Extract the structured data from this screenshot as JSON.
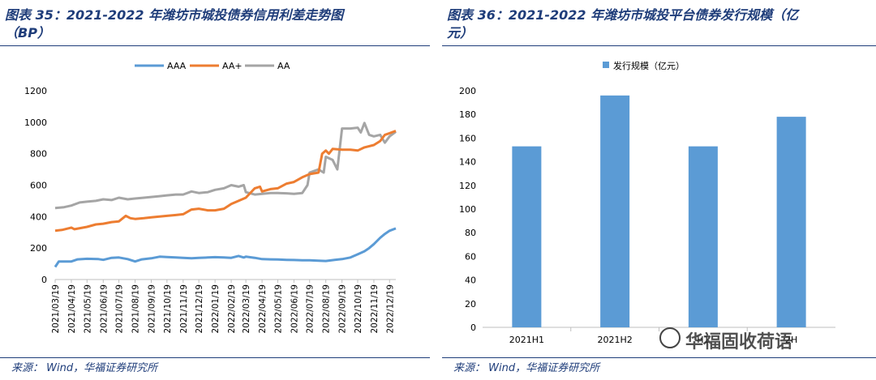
{
  "left": {
    "title_line1": "图表 35：2021-2022 年潍坊市城投债券信用利差走势图",
    "title_line2": "（BP）",
    "source": "来源： Wind，华福证券研究所"
  },
  "right": {
    "title_line1": "图表 36：2021-2022 年潍坊市城投平台债券发行规模（亿",
    "title_line2": "元）",
    "source": "来源： Wind，华福证券研究所"
  },
  "watermark": "华福固收荷语",
  "colors": {
    "AAA": "#5b9bd5",
    "AA+": "#ed7d31",
    "AA": "#a5a5a5",
    "bar": "#5b9bd5",
    "title": "#1f3d7a"
  },
  "chart_data": [
    {
      "type": "line",
      "ylim": [
        0,
        1200
      ],
      "yticks": [
        "0",
        "200",
        "400",
        "600",
        "800",
        "1000",
        "1200"
      ],
      "x_tick_labels": [
        "2021/03/19",
        "2021/04/19",
        "2021/05/19",
        "2021/06/19",
        "2021/07/19",
        "2021/08/19",
        "2021/09/19",
        "2021/10/19",
        "2021/11/19",
        "2021/12/19",
        "2022/01/19",
        "2022/02/19",
        "2022/03/19",
        "2022/04/19",
        "2022/05/19",
        "2022/06/19",
        "2022/07/19",
        "2022/08/19",
        "2022/09/19",
        "2022/10/19",
        "2022/11/19",
        "2022/12/19"
      ],
      "x_range": [
        "2021/03/19",
        "2022/12/31"
      ],
      "legend_position": "top-center",
      "series": [
        {
          "name": "AAA",
          "points": [
            [
              "2021/03/19",
              80
            ],
            [
              "2021/03/26",
              115
            ],
            [
              "2021/04/19",
              115
            ],
            [
              "2021/05/01",
              128
            ],
            [
              "2021/05/19",
              132
            ],
            [
              "2021/06/10",
              130
            ],
            [
              "2021/06/19",
              125
            ],
            [
              "2021/07/05",
              138
            ],
            [
              "2021/07/19",
              140
            ],
            [
              "2021/08/05",
              130
            ],
            [
              "2021/08/19",
              115
            ],
            [
              "2021/09/01",
              128
            ],
            [
              "2021/09/19",
              135
            ],
            [
              "2021/10/05",
              145
            ],
            [
              "2021/10/19",
              143
            ],
            [
              "2021/11/05",
              140
            ],
            [
              "2021/11/19",
              138
            ],
            [
              "2021/12/05",
              135
            ],
            [
              "2021/12/19",
              138
            ],
            [
              "2022/01/05",
              140
            ],
            [
              "2022/01/19",
              142
            ],
            [
              "2022/02/05",
              140
            ],
            [
              "2022/02/19",
              138
            ],
            [
              "2022/03/05",
              150
            ],
            [
              "2022/03/15",
              140
            ],
            [
              "2022/03/19",
              145
            ],
            [
              "2022/04/05",
              138
            ],
            [
              "2022/04/19",
              130
            ],
            [
              "2022/05/05",
              128
            ],
            [
              "2022/05/19",
              127
            ],
            [
              "2022/06/05",
              125
            ],
            [
              "2022/06/19",
              124
            ],
            [
              "2022/07/05",
              122
            ],
            [
              "2022/07/19",
              122
            ],
            [
              "2022/08/05",
              120
            ],
            [
              "2022/08/19",
              118
            ],
            [
              "2022/09/05",
              125
            ],
            [
              "2022/09/19",
              130
            ],
            [
              "2022/10/05",
              140
            ],
            [
              "2022/10/19",
              160
            ],
            [
              "2022/11/01",
              180
            ],
            [
              "2022/11/10",
              200
            ],
            [
              "2022/11/19",
              225
            ],
            [
              "2022/12/01",
              265
            ],
            [
              "2022/12/10",
              290
            ],
            [
              "2022/12/19",
              310
            ],
            [
              "2022/12/31",
              325
            ]
          ]
        },
        {
          "name": "AA+",
          "points": [
            [
              "2021/03/19",
              310
            ],
            [
              "2021/04/01",
              315
            ],
            [
              "2021/04/19",
              330
            ],
            [
              "2021/04/25",
              320
            ],
            [
              "2021/05/19",
              335
            ],
            [
              "2021/06/05",
              350
            ],
            [
              "2021/06/19",
              355
            ],
            [
              "2021/07/05",
              365
            ],
            [
              "2021/07/19",
              370
            ],
            [
              "2021/08/01",
              405
            ],
            [
              "2021/08/10",
              390
            ],
            [
              "2021/08/19",
              385
            ],
            [
              "2021/09/05",
              390
            ],
            [
              "2021/09/19",
              395
            ],
            [
              "2021/10/05",
              400
            ],
            [
              "2021/10/19",
              405
            ],
            [
              "2021/11/05",
              410
            ],
            [
              "2021/11/19",
              415
            ],
            [
              "2021/12/05",
              445
            ],
            [
              "2021/12/19",
              450
            ],
            [
              "2022/01/05",
              440
            ],
            [
              "2022/01/19",
              440
            ],
            [
              "2022/02/05",
              450
            ],
            [
              "2022/02/19",
              480
            ],
            [
              "2022/03/05",
              500
            ],
            [
              "2022/03/19",
              520
            ],
            [
              "2022/04/05",
              580
            ],
            [
              "2022/04/15",
              590
            ],
            [
              "2022/04/19",
              560
            ],
            [
              "2022/05/05",
              575
            ],
            [
              "2022/05/19",
              580
            ],
            [
              "2022/06/05",
              610
            ],
            [
              "2022/06/19",
              620
            ],
            [
              "2022/07/05",
              650
            ],
            [
              "2022/07/19",
              670
            ],
            [
              "2022/08/05",
              680
            ],
            [
              "2022/08/12",
              800
            ],
            [
              "2022/08/19",
              820
            ],
            [
              "2022/08/25",
              800
            ],
            [
              "2022/09/01",
              830
            ],
            [
              "2022/09/19",
              825
            ],
            [
              "2022/10/05",
              825
            ],
            [
              "2022/10/19",
              820
            ],
            [
              "2022/11/01",
              840
            ],
            [
              "2022/11/19",
              855
            ],
            [
              "2022/12/01",
              880
            ],
            [
              "2022/12/10",
              920
            ],
            [
              "2022/12/19",
              930
            ],
            [
              "2022/12/31",
              945
            ]
          ]
        },
        {
          "name": "AA",
          "points": [
            [
              "2021/03/19",
              455
            ],
            [
              "2021/04/05",
              460
            ],
            [
              "2021/04/19",
              470
            ],
            [
              "2021/05/05",
              490
            ],
            [
              "2021/05/19",
              495
            ],
            [
              "2021/06/05",
              500
            ],
            [
              "2021/06/19",
              510
            ],
            [
              "2021/07/05",
              505
            ],
            [
              "2021/07/19",
              520
            ],
            [
              "2021/08/05",
              510
            ],
            [
              "2021/08/19",
              515
            ],
            [
              "2021/09/05",
              520
            ],
            [
              "2021/09/19",
              525
            ],
            [
              "2021/10/05",
              530
            ],
            [
              "2021/10/19",
              535
            ],
            [
              "2021/11/05",
              540
            ],
            [
              "2021/11/19",
              540
            ],
            [
              "2021/12/05",
              560
            ],
            [
              "2021/12/19",
              550
            ],
            [
              "2022/01/05",
              555
            ],
            [
              "2022/01/19",
              570
            ],
            [
              "2022/02/05",
              580
            ],
            [
              "2022/02/19",
              600
            ],
            [
              "2022/03/05",
              590
            ],
            [
              "2022/03/15",
              600
            ],
            [
              "2022/03/19",
              555
            ],
            [
              "2022/04/05",
              540
            ],
            [
              "2022/04/19",
              545
            ],
            [
              "2022/05/05",
              550
            ],
            [
              "2022/05/19",
              550
            ],
            [
              "2022/06/05",
              548
            ],
            [
              "2022/06/19",
              545
            ],
            [
              "2022/07/05",
              550
            ],
            [
              "2022/07/15",
              600
            ],
            [
              "2022/07/19",
              680
            ],
            [
              "2022/08/05",
              700
            ],
            [
              "2022/08/15",
              680
            ],
            [
              "2022/08/19",
              780
            ],
            [
              "2022/09/01",
              760
            ],
            [
              "2022/09/10",
              700
            ],
            [
              "2022/09/19",
              960
            ],
            [
              "2022/10/05",
              960
            ],
            [
              "2022/10/19",
              965
            ],
            [
              "2022/10/25",
              935
            ],
            [
              "2022/11/01",
              995
            ],
            [
              "2022/11/10",
              920
            ],
            [
              "2022/11/19",
              910
            ],
            [
              "2022/12/01",
              920
            ],
            [
              "2022/12/10",
              870
            ],
            [
              "2022/12/19",
              910
            ],
            [
              "2022/12/31",
              940
            ]
          ]
        }
      ]
    },
    {
      "type": "bar",
      "categories": [
        "2021H1",
        "2021H2",
        "2022H1",
        "2022H2"
      ],
      "category_labels_shown": [
        "2021H1",
        "2021H2",
        "H1",
        "2H"
      ],
      "values": [
        153,
        196,
        153,
        178
      ],
      "ylim": [
        0,
        200
      ],
      "yticks": [
        "0",
        "20",
        "40",
        "60",
        "80",
        "100",
        "120",
        "140",
        "160",
        "180",
        "200"
      ],
      "legend": "发行规模（亿元）",
      "legend_position": "top-center"
    }
  ]
}
